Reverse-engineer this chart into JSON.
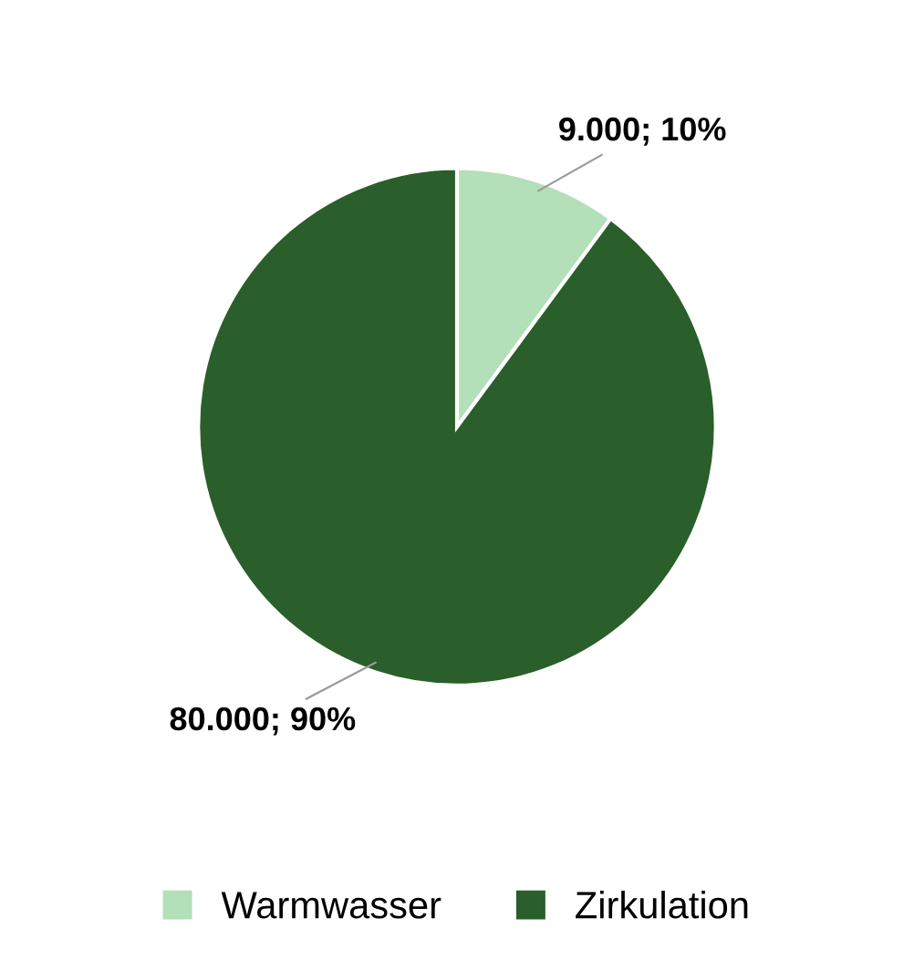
{
  "chart_data": {
    "type": "pie",
    "categories": [
      "Warmwasser",
      "Zirkulation"
    ],
    "values": [
      9000,
      80000
    ],
    "value_labels": [
      "9.000; 10%",
      "80.000; 90%"
    ],
    "colors": [
      "#b3dfb9",
      "#2a5e2a"
    ],
    "legend": "bottom"
  }
}
